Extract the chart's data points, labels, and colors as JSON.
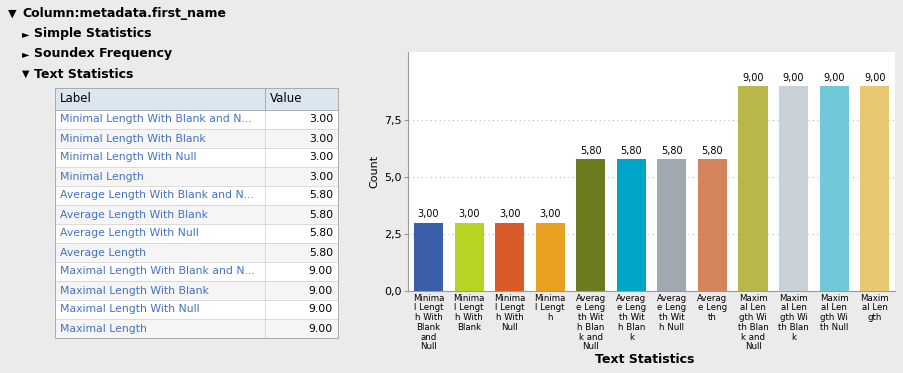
{
  "table_header": [
    "Label",
    "Value"
  ],
  "table_rows": [
    [
      "Minimal Length With Blank and N...",
      "3.00"
    ],
    [
      "Minimal Length With Blank",
      "3.00"
    ],
    [
      "Minimal Length With Null",
      "3.00"
    ],
    [
      "Minimal Length",
      "3.00"
    ],
    [
      "Average Length With Blank and N...",
      "5.80"
    ],
    [
      "Average Length With Blank",
      "5.80"
    ],
    [
      "Average Length With Null",
      "5.80"
    ],
    [
      "Average Length",
      "5.80"
    ],
    [
      "Maximal Length With Blank and N...",
      "9.00"
    ],
    [
      "Maximal Length With Blank",
      "9.00"
    ],
    [
      "Maximal Length With Null",
      "9.00"
    ],
    [
      "Maximal Length",
      "9.00"
    ]
  ],
  "bar_labels": [
    "Minima\nl Lengt\nh With\nBlank\nand\nNull",
    "Minima\nl Lengt\nh With\nBlank",
    "Minima\nl Lengt\nh With\nNull",
    "Minima\nl Lengt\nh",
    "Averag\ne Leng\nth Wit\nh Blan\nk and\nNull",
    "Averag\ne Leng\nth Wit\nh Blan\nk",
    "Averag\ne Leng\nth Wit\nh Null",
    "Averag\ne Leng\nth",
    "Maxim\nal Len\ngth Wi\nth Blan\nk and\nNull",
    "Maxim\nal Len\ngth Wi\nth Blan\nk",
    "Maxim\nal Len\ngth Wi\nth Null",
    "Maxim\nal Len\ngth"
  ],
  "bar_values": [
    3.0,
    3.0,
    3.0,
    3.0,
    5.8,
    5.8,
    5.8,
    5.8,
    9.0,
    9.0,
    9.0,
    9.0
  ],
  "bar_colors": [
    "#3a5ea8",
    "#b5d423",
    "#d95b2a",
    "#e8a020",
    "#6d7a1f",
    "#00a6c8",
    "#a0a8b0",
    "#d4845a",
    "#b8b84a",
    "#c8d0d8",
    "#70c8d8",
    "#e8c870"
  ],
  "bar_value_labels": [
    "3,00",
    "3,00",
    "3,00",
    "3,00",
    "5,80",
    "5,80",
    "5,80",
    "5,80",
    "9,00",
    "9,00",
    "9,00",
    "9,00"
  ],
  "ylabel": "Count",
  "xlabel": "Text Statistics",
  "yticks": [
    0.0,
    2.5,
    5.0,
    7.5
  ],
  "ylim": [
    0,
    10.5
  ],
  "chart_bg": "#ebebeb",
  "plot_bg": "#ffffff",
  "tree_header": "Column:metadata.first_name",
  "tree_items": [
    {
      "label": "Simple Statistics",
      "expanded": false
    },
    {
      "label": "Soundex Frequency",
      "expanded": false
    },
    {
      "label": "Text Statistics",
      "expanded": true
    }
  ],
  "table_header_color": "#dce6f1",
  "table_row_color_odd": "#ffffff",
  "table_row_color_even": "#f5f5f5",
  "table_label_color": "#4472c4",
  "table_text_color": "#000000",
  "title_color": "#000000",
  "grid_color": "#bbbbbb",
  "figsize": [
    9.04,
    3.73
  ],
  "dpi": 100
}
